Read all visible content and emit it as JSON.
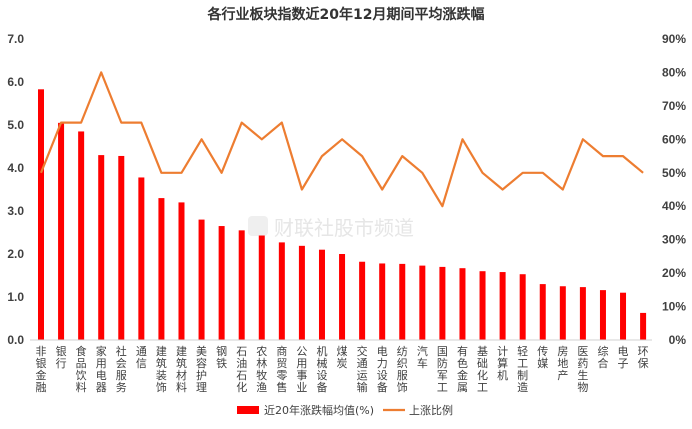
{
  "watermark": "财联社股市频道",
  "chart_data": {
    "type": "bar",
    "title": "各行业板块指数近20年12月期间平均涨跌幅",
    "categories": [
      "非银金融",
      "银行",
      "食品饮料",
      "家用电器",
      "社会服务",
      "通信",
      "建筑装饰",
      "建筑材料",
      "美容护理",
      "钢铁",
      "石油石化",
      "农林牧渔",
      "商贸零售",
      "公用事业",
      "机械设备",
      "煤炭",
      "交通运输",
      "电力设备",
      "纺织服饰",
      "汽车",
      "国防军工",
      "有色金属",
      "基础化工",
      "计算机",
      "轻工制造",
      "传媒",
      "房地产",
      "医药生物",
      "综合",
      "电子",
      "环保"
    ],
    "series": [
      {
        "name": "近20年涨跌幅均值(%)",
        "type": "bar",
        "axis": "left",
        "color": "#ff0000",
        "values": [
          5.83,
          5.05,
          4.85,
          4.3,
          4.28,
          3.78,
          3.3,
          3.2,
          2.8,
          2.65,
          2.55,
          2.43,
          2.27,
          2.19,
          2.1,
          2.0,
          1.82,
          1.78,
          1.77,
          1.73,
          1.7,
          1.67,
          1.6,
          1.58,
          1.53,
          1.3,
          1.25,
          1.23,
          1.16,
          1.1,
          0.63
        ]
      },
      {
        "name": "上涨比例",
        "type": "line",
        "axis": "right",
        "color": "#ed7d31",
        "values": [
          50,
          65,
          65,
          80,
          65,
          65,
          50,
          50,
          60,
          50,
          65,
          60,
          65,
          45,
          55,
          60,
          55,
          45,
          55,
          50,
          40,
          60,
          50,
          45,
          50,
          50,
          45,
          60,
          55,
          55,
          50
        ]
      }
    ],
    "y_left": {
      "min": 0,
      "max": 7,
      "step": 1,
      "ticks": [
        "0.0",
        "1.0",
        "2.0",
        "3.0",
        "4.0",
        "5.0",
        "6.0",
        "7.0"
      ]
    },
    "y_right": {
      "min": 0,
      "max": 90,
      "step": 10,
      "ticks": [
        "0%",
        "10%",
        "20%",
        "30%",
        "40%",
        "50%",
        "60%",
        "70%",
        "80%",
        "90%"
      ]
    },
    "grid": false,
    "legend_position": "bottom-center"
  }
}
